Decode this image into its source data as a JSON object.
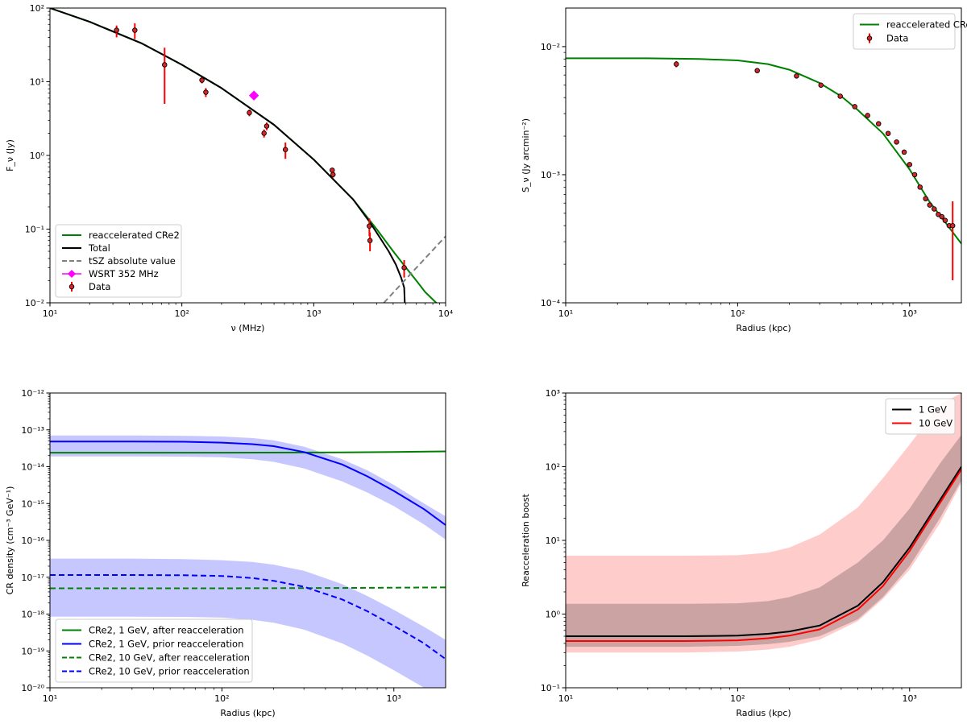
{
  "chart_data": [
    {
      "id": "spectrum",
      "type": "line",
      "xscale": "log",
      "yscale": "log",
      "xlim": [
        10,
        10000
      ],
      "ylim": [
        0.01,
        100
      ],
      "xlabel": "ν (MHz)",
      "ylabel": "F_ν (Jy)",
      "xticks": [
        {
          "v": 10,
          "label": "10¹"
        },
        {
          "v": 100,
          "label": "10²"
        },
        {
          "v": 1000,
          "label": "10³"
        },
        {
          "v": 10000,
          "label": "10⁴"
        }
      ],
      "yticks": [
        {
          "v": 0.01,
          "label": "10⁻²"
        },
        {
          "v": 0.1,
          "label": "10⁻¹"
        },
        {
          "v": 1,
          "label": "10⁰"
        },
        {
          "v": 10,
          "label": "10¹"
        },
        {
          "v": 100,
          "label": "10²"
        }
      ],
      "legend_position": "lower-left",
      "series": [
        {
          "name": "reaccelerated CRe2",
          "color": "#008000",
          "style": "solid",
          "x": [
            10,
            20,
            50,
            100,
            200,
            500,
            1000,
            2000,
            3000,
            4000,
            5000,
            6000,
            7000,
            8500
          ],
          "y": [
            100,
            65,
            33,
            17,
            8.2,
            2.6,
            0.88,
            0.25,
            0.1,
            0.05,
            0.03,
            0.02,
            0.014,
            0.01
          ]
        },
        {
          "name": "Total",
          "color": "#000000",
          "style": "solid",
          "x": [
            10,
            20,
            50,
            100,
            200,
            500,
            1000,
            2000,
            2700,
            3200,
            3700,
            4200,
            4600,
            4850,
            4900
          ],
          "y": [
            100,
            65,
            33,
            17,
            8.2,
            2.6,
            0.88,
            0.25,
            0.12,
            0.075,
            0.05,
            0.033,
            0.022,
            0.016,
            0.01
          ]
        },
        {
          "name": "tSZ absolute value",
          "color": "#808080",
          "style": "dashed",
          "x": [
            3400,
            10000
          ],
          "y": [
            0.01,
            0.08
          ]
        }
      ],
      "markers": [
        {
          "name": "WSRT 352 MHz",
          "color": "#ff00ff",
          "x": 352,
          "y": 6.5
        },
        {
          "name": "Data",
          "color": "#d62728",
          "points": [
            {
              "x": 32,
              "y": 50,
              "lo": 40,
              "hi": 58
            },
            {
              "x": 44,
              "y": 50,
              "lo": 38,
              "hi": 62
            },
            {
              "x": 74,
              "y": 17,
              "lo": 5,
              "hi": 29
            },
            {
              "x": 142,
              "y": 10.5,
              "lo": 9.5,
              "hi": 11.5
            },
            {
              "x": 152,
              "y": 7.2,
              "lo": 6.2,
              "hi": 8.2
            },
            {
              "x": 325,
              "y": 3.8,
              "lo": 3.4,
              "hi": 4.2
            },
            {
              "x": 420,
              "y": 2.0,
              "lo": 1.75,
              "hi": 2.25
            },
            {
              "x": 440,
              "y": 2.5,
              "lo": 2.2,
              "hi": 2.8
            },
            {
              "x": 610,
              "y": 1.2,
              "lo": 0.9,
              "hi": 1.5
            },
            {
              "x": 1380,
              "y": 0.63,
              "lo": 0.58,
              "hi": 0.68
            },
            {
              "x": 1400,
              "y": 0.55,
              "lo": 0.5,
              "hi": 0.6
            },
            {
              "x": 2640,
              "y": 0.11,
              "lo": 0.08,
              "hi": 0.14
            },
            {
              "x": 2670,
              "y": 0.07,
              "lo": 0.05,
              "hi": 0.09
            },
            {
              "x": 4850,
              "y": 0.03,
              "lo": 0.022,
              "hi": 0.038
            }
          ]
        }
      ],
      "legend": [
        {
          "label": "reaccelerated CRe2",
          "kind": "line",
          "color": "#008000",
          "style": "solid"
        },
        {
          "label": "Total",
          "kind": "line",
          "color": "#000000",
          "style": "solid"
        },
        {
          "label": "tSZ absolute value",
          "kind": "line",
          "color": "#808080",
          "style": "dashed"
        },
        {
          "label": "WSRT 352 MHz",
          "kind": "diamond",
          "color": "#ff00ff"
        },
        {
          "label": "Data",
          "kind": "errpoint",
          "color": "#d62728"
        }
      ]
    },
    {
      "id": "profile",
      "type": "line",
      "xscale": "log",
      "yscale": "log",
      "xlim": [
        10,
        2000
      ],
      "ylim": [
        0.0001,
        0.02
      ],
      "xlabel": "Radius (kpc)",
      "ylabel": "S_ν (Jy arcmin⁻²)",
      "xticks": [
        {
          "v": 10,
          "label": "10¹"
        },
        {
          "v": 100,
          "label": "10²"
        },
        {
          "v": 1000,
          "label": "10³"
        }
      ],
      "yticks": [
        {
          "v": 0.0001,
          "label": "10⁻⁴"
        },
        {
          "v": 0.001,
          "label": "10⁻³"
        },
        {
          "v": 0.01,
          "label": "10⁻²"
        }
      ],
      "legend_position": "upper-right",
      "series": [
        {
          "name": "reaccelerated CRe2",
          "color": "#008000",
          "style": "solid",
          "x": [
            10,
            30,
            60,
            100,
            150,
            200,
            300,
            400,
            500,
            700,
            1000,
            1300,
            1600,
            2000
          ],
          "y": [
            0.0081,
            0.0081,
            0.008,
            0.0078,
            0.0073,
            0.0066,
            0.0052,
            0.0041,
            0.0032,
            0.0021,
            0.0011,
            0.00062,
            0.00043,
            0.00029
          ]
        }
      ],
      "markers": [
        {
          "name": "Data",
          "color": "#d62728",
          "points": [
            {
              "x": 44,
              "y": 0.0073,
              "lo": 0.0069,
              "hi": 0.0077
            },
            {
              "x": 130,
              "y": 0.0065
            },
            {
              "x": 220,
              "y": 0.0059
            },
            {
              "x": 305,
              "y": 0.005
            },
            {
              "x": 395,
              "y": 0.0041
            },
            {
              "x": 480,
              "y": 0.0034
            },
            {
              "x": 570,
              "y": 0.0029
            },
            {
              "x": 660,
              "y": 0.0025
            },
            {
              "x": 750,
              "y": 0.0021
            },
            {
              "x": 840,
              "y": 0.0018
            },
            {
              "x": 930,
              "y": 0.0015
            },
            {
              "x": 1000,
              "y": 0.0012
            },
            {
              "x": 1070,
              "y": 0.001
            },
            {
              "x": 1150,
              "y": 0.0008
            },
            {
              "x": 1240,
              "y": 0.00065
            },
            {
              "x": 1310,
              "y": 0.00058
            },
            {
              "x": 1390,
              "y": 0.00054
            },
            {
              "x": 1470,
              "y": 0.00049
            },
            {
              "x": 1540,
              "y": 0.00047
            },
            {
              "x": 1610,
              "y": 0.00044
            },
            {
              "x": 1700,
              "y": 0.0004
            },
            {
              "x": 1780,
              "y": 0.0004,
              "lo": 0.00015,
              "hi": 0.00062
            }
          ]
        }
      ],
      "legend": [
        {
          "label": "reaccelerated CRe2",
          "kind": "line",
          "color": "#008000",
          "style": "solid"
        },
        {
          "label": "Data",
          "kind": "errpoint",
          "color": "#d62728"
        }
      ]
    },
    {
      "id": "density",
      "type": "line",
      "xscale": "log",
      "yscale": "log",
      "xlim": [
        10,
        2000
      ],
      "ylim": [
        1e-20,
        1e-12
      ],
      "xlabel": "Radius (kpc)",
      "ylabel": "CR density (cm⁻³ GeV⁻¹)",
      "xticks": [
        {
          "v": 10,
          "label": "10¹"
        },
        {
          "v": 100,
          "label": "10²"
        },
        {
          "v": 1000,
          "label": "10³"
        }
      ],
      "yticks": [
        {
          "v": 1e-20,
          "label": "10⁻²⁰"
        },
        {
          "v": 1e-19,
          "label": "10⁻¹⁹"
        },
        {
          "v": 1e-18,
          "label": "10⁻¹⁸"
        },
        {
          "v": 1e-17,
          "label": "10⁻¹⁷"
        },
        {
          "v": 1e-16,
          "label": "10⁻¹⁶"
        },
        {
          "v": 1e-15,
          "label": "10⁻¹⁵"
        },
        {
          "v": 1e-14,
          "label": "10⁻¹⁴"
        },
        {
          "v": 1e-13,
          "label": "10⁻¹³"
        },
        {
          "v": 1e-12,
          "label": "10⁻¹²"
        }
      ],
      "legend_position": "lower-left",
      "bands": [
        {
          "color": "#0000ff",
          "opacity": 0.22,
          "x": [
            10,
            30,
            60,
            100,
            150,
            200,
            300,
            500,
            700,
            1000,
            1500,
            2000
          ],
          "lo": [
            1.9e-14,
            1.9e-14,
            1.88e-14,
            1.8e-14,
            1.6e-14,
            1.35e-14,
            9e-15,
            4e-15,
            2e-15,
            8.5e-16,
            2.7e-16,
            1.05e-16
          ],
          "hi": [
            7e-14,
            7e-14,
            6.9e-14,
            6.6e-14,
            6e-14,
            5.2e-14,
            3.5e-14,
            1.6e-14,
            8e-15,
            3.2e-15,
            1e-15,
            4.5e-16
          ]
        },
        {
          "color": "#0000ff",
          "opacity": 0.22,
          "x": [
            10,
            30,
            60,
            100,
            150,
            200,
            300,
            500,
            700,
            1000,
            1500,
            2000
          ],
          "lo": [
            8.5e-19,
            8.5e-19,
            8.4e-19,
            8e-19,
            7e-19,
            5.8e-19,
            3.8e-19,
            1.6e-19,
            7.5e-20,
            3e-20,
            1e-20,
            1e-20
          ],
          "hi": [
            3.2e-17,
            3.2e-17,
            3.1e-17,
            2.9e-17,
            2.6e-17,
            2.2e-17,
            1.5e-17,
            6.5e-18,
            3.1e-18,
            1.3e-18,
            4.5e-19,
            2e-19
          ]
        }
      ],
      "series": [
        {
          "name": "CRe2, 1 GeV, after reacceleration",
          "color": "#008000",
          "style": "solid",
          "x": [
            10,
            100,
            500,
            1000,
            2000
          ],
          "y": [
            2.4e-14,
            2.4e-14,
            2.45e-14,
            2.5e-14,
            2.6e-14
          ]
        },
        {
          "name": "CRe2, 1 GeV, prior reacceleration",
          "color": "#0000ff",
          "style": "solid",
          "x": [
            10,
            30,
            60,
            100,
            150,
            200,
            300,
            500,
            700,
            1000,
            1500,
            2000
          ],
          "y": [
            4.8e-14,
            4.8e-14,
            4.75e-14,
            4.5e-14,
            4.1e-14,
            3.6e-14,
            2.5e-14,
            1.15e-14,
            5.5e-15,
            2.2e-15,
            7e-16,
            2.6e-16
          ]
        },
        {
          "name": "CRe2, 10 GeV, after reacceleration",
          "color": "#008000",
          "style": "dashed",
          "x": [
            10,
            100,
            500,
            1000,
            2000
          ],
          "y": [
            5e-18,
            5e-18,
            5.1e-18,
            5.2e-18,
            5.3e-18
          ]
        },
        {
          "name": "CRe2, 10 GeV, prior reacceleration",
          "color": "#0000ff",
          "style": "dashed",
          "x": [
            10,
            30,
            60,
            100,
            150,
            200,
            300,
            500,
            700,
            1000,
            1500,
            2000
          ],
          "y": [
            1.15e-17,
            1.15e-17,
            1.13e-17,
            1.08e-17,
            9.5e-18,
            8e-18,
            5.5e-18,
            2.5e-18,
            1.2e-18,
            4.8e-19,
            1.6e-19,
            6e-20
          ]
        }
      ],
      "legend": [
        {
          "label": "CRe2, 1 GeV, after reacceleration",
          "kind": "line",
          "color": "#008000",
          "style": "solid"
        },
        {
          "label": "CRe2, 1 GeV, prior reacceleration",
          "kind": "line",
          "color": "#0000ff",
          "style": "solid"
        },
        {
          "label": "CRe2, 10 GeV, after reacceleration",
          "kind": "line",
          "color": "#008000",
          "style": "dashed"
        },
        {
          "label": "CRe2, 10 GeV, prior reacceleration",
          "kind": "line",
          "color": "#0000ff",
          "style": "dashed"
        }
      ]
    },
    {
      "id": "boost",
      "type": "line",
      "xscale": "log",
      "yscale": "log",
      "xlim": [
        10,
        2000
      ],
      "ylim": [
        0.1,
        1000
      ],
      "xlabel": "Radius (kpc)",
      "ylabel": "Reacceleration boost",
      "xticks": [
        {
          "v": 10,
          "label": "10¹"
        },
        {
          "v": 100,
          "label": "10²"
        },
        {
          "v": 1000,
          "label": "10³"
        }
      ],
      "yticks": [
        {
          "v": 0.1,
          "label": "10⁻¹"
        },
        {
          "v": 1,
          "label": "10⁰"
        },
        {
          "v": 10,
          "label": "10¹"
        },
        {
          "v": 100,
          "label": "10²"
        },
        {
          "v": 1000,
          "label": "10³"
        }
      ],
      "legend_position": "upper-right",
      "bands": [
        {
          "color": "#ff0000",
          "opacity": 0.2,
          "x": [
            10,
            50,
            100,
            150,
            200,
            300,
            500,
            700,
            1000,
            1500,
            2000
          ],
          "lo": [
            0.3,
            0.3,
            0.31,
            0.33,
            0.36,
            0.45,
            0.8,
            1.6,
            4,
            17,
            60
          ],
          "hi": [
            6.2,
            6.2,
            6.3,
            6.8,
            8,
            12,
            28,
            70,
            200,
            700,
            1000
          ]
        },
        {
          "color": "#000000",
          "opacity": 0.2,
          "x": [
            10,
            50,
            100,
            150,
            200,
            300,
            500,
            700,
            1000,
            1500,
            2000
          ],
          "lo": [
            0.36,
            0.36,
            0.37,
            0.39,
            0.42,
            0.5,
            0.85,
            1.7,
            4.5,
            20,
            65
          ],
          "hi": [
            1.38,
            1.38,
            1.4,
            1.5,
            1.7,
            2.3,
            5,
            10,
            27,
            110,
            270
          ]
        }
      ],
      "series": [
        {
          "name": "1 GeV",
          "color": "#000000",
          "style": "solid",
          "x": [
            10,
            50,
            100,
            150,
            200,
            300,
            500,
            700,
            1000,
            1500,
            2000
          ],
          "y": [
            0.5,
            0.5,
            0.51,
            0.54,
            0.58,
            0.7,
            1.3,
            2.7,
            8,
            35,
            100
          ]
        },
        {
          "name": "10 GeV",
          "color": "#ff0000",
          "style": "solid",
          "x": [
            10,
            50,
            100,
            150,
            200,
            300,
            500,
            700,
            1000,
            1500,
            2000
          ],
          "y": [
            0.43,
            0.43,
            0.44,
            0.47,
            0.51,
            0.62,
            1.15,
            2.4,
            7.2,
            32,
            92
          ]
        }
      ],
      "legend": [
        {
          "label": "1 GeV",
          "kind": "line",
          "color": "#000000",
          "style": "solid"
        },
        {
          "label": "10 GeV",
          "kind": "line",
          "color": "#ff0000",
          "style": "solid"
        }
      ]
    }
  ]
}
